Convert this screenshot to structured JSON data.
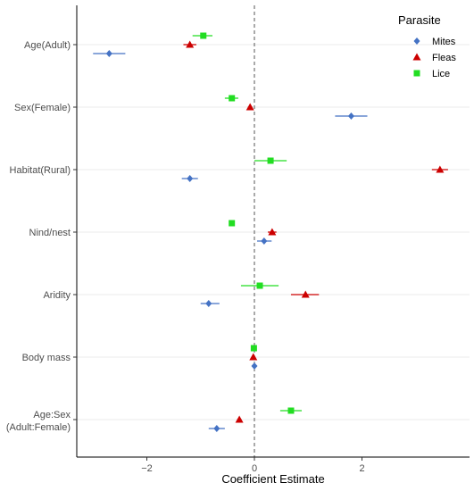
{
  "chart_data": {
    "type": "scatter",
    "subtype": "coefficient-plot",
    "title": "",
    "xlabel": "Coefficient Estimate",
    "ylabel": "",
    "xlim": [
      -3.3,
      4.0
    ],
    "x_ticks": [
      -2,
      0,
      2
    ],
    "reference_line": {
      "x": 0,
      "style": "dashed"
    },
    "grid": "horizontal-major",
    "legend": {
      "title": "Parasite",
      "placement": "top-right"
    },
    "categories": [
      {
        "label": "Age(Adult)"
      },
      {
        "label": "Sex(Female)"
      },
      {
        "label": "Habitat(Rural)"
      },
      {
        "label": "Nind/nest"
      },
      {
        "label": "Aridity"
      },
      {
        "label": "Body mass"
      },
      {
        "label": "Age:Sex",
        "label2": "(Adult:Female)"
      }
    ],
    "series": [
      {
        "name": "Mites",
        "color": "#4472C4",
        "marker": "diamond",
        "points": [
          {
            "est": -2.7,
            "lo": -3.0,
            "hi": -2.4
          },
          {
            "est": 1.8,
            "lo": 1.5,
            "hi": 2.1
          },
          {
            "est": -1.2,
            "lo": -1.35,
            "hi": -1.05
          },
          {
            "est": 0.18,
            "lo": 0.05,
            "hi": 0.32
          },
          {
            "est": -0.85,
            "lo": -1.0,
            "hi": -0.65
          },
          {
            "est": 0.0,
            "lo": -0.02,
            "hi": 0.02
          },
          {
            "est": -0.7,
            "lo": -0.85,
            "hi": -0.55
          }
        ]
      },
      {
        "name": "Fleas",
        "color": "#CC0000",
        "marker": "triangle",
        "points": [
          {
            "est": -1.2,
            "lo": -1.32,
            "hi": -1.08
          },
          {
            "est": -0.08,
            "lo": -0.12,
            "hi": -0.04
          },
          {
            "est": 3.45,
            "lo": 3.3,
            "hi": 3.6
          },
          {
            "est": 0.33,
            "lo": 0.25,
            "hi": 0.41
          },
          {
            "est": 0.95,
            "lo": 0.68,
            "hi": 1.2
          },
          {
            "est": -0.02,
            "lo": -0.05,
            "hi": 0.01
          },
          {
            "est": -0.28,
            "lo": -0.32,
            "hi": -0.24
          }
        ]
      },
      {
        "name": "Lice",
        "color": "#22DD22",
        "marker": "square",
        "points": [
          {
            "est": -0.95,
            "lo": -1.15,
            "hi": -0.78
          },
          {
            "est": -0.42,
            "lo": -0.55,
            "hi": -0.3
          },
          {
            "est": 0.3,
            "lo": 0.0,
            "hi": 0.6
          },
          {
            "est": -0.42,
            "lo": -0.45,
            "hi": -0.39
          },
          {
            "est": 0.1,
            "lo": -0.25,
            "hi": 0.45
          },
          {
            "est": -0.01,
            "lo": -0.03,
            "hi": 0.01
          },
          {
            "est": 0.68,
            "lo": 0.48,
            "hi": 0.88
          }
        ]
      }
    ]
  }
}
